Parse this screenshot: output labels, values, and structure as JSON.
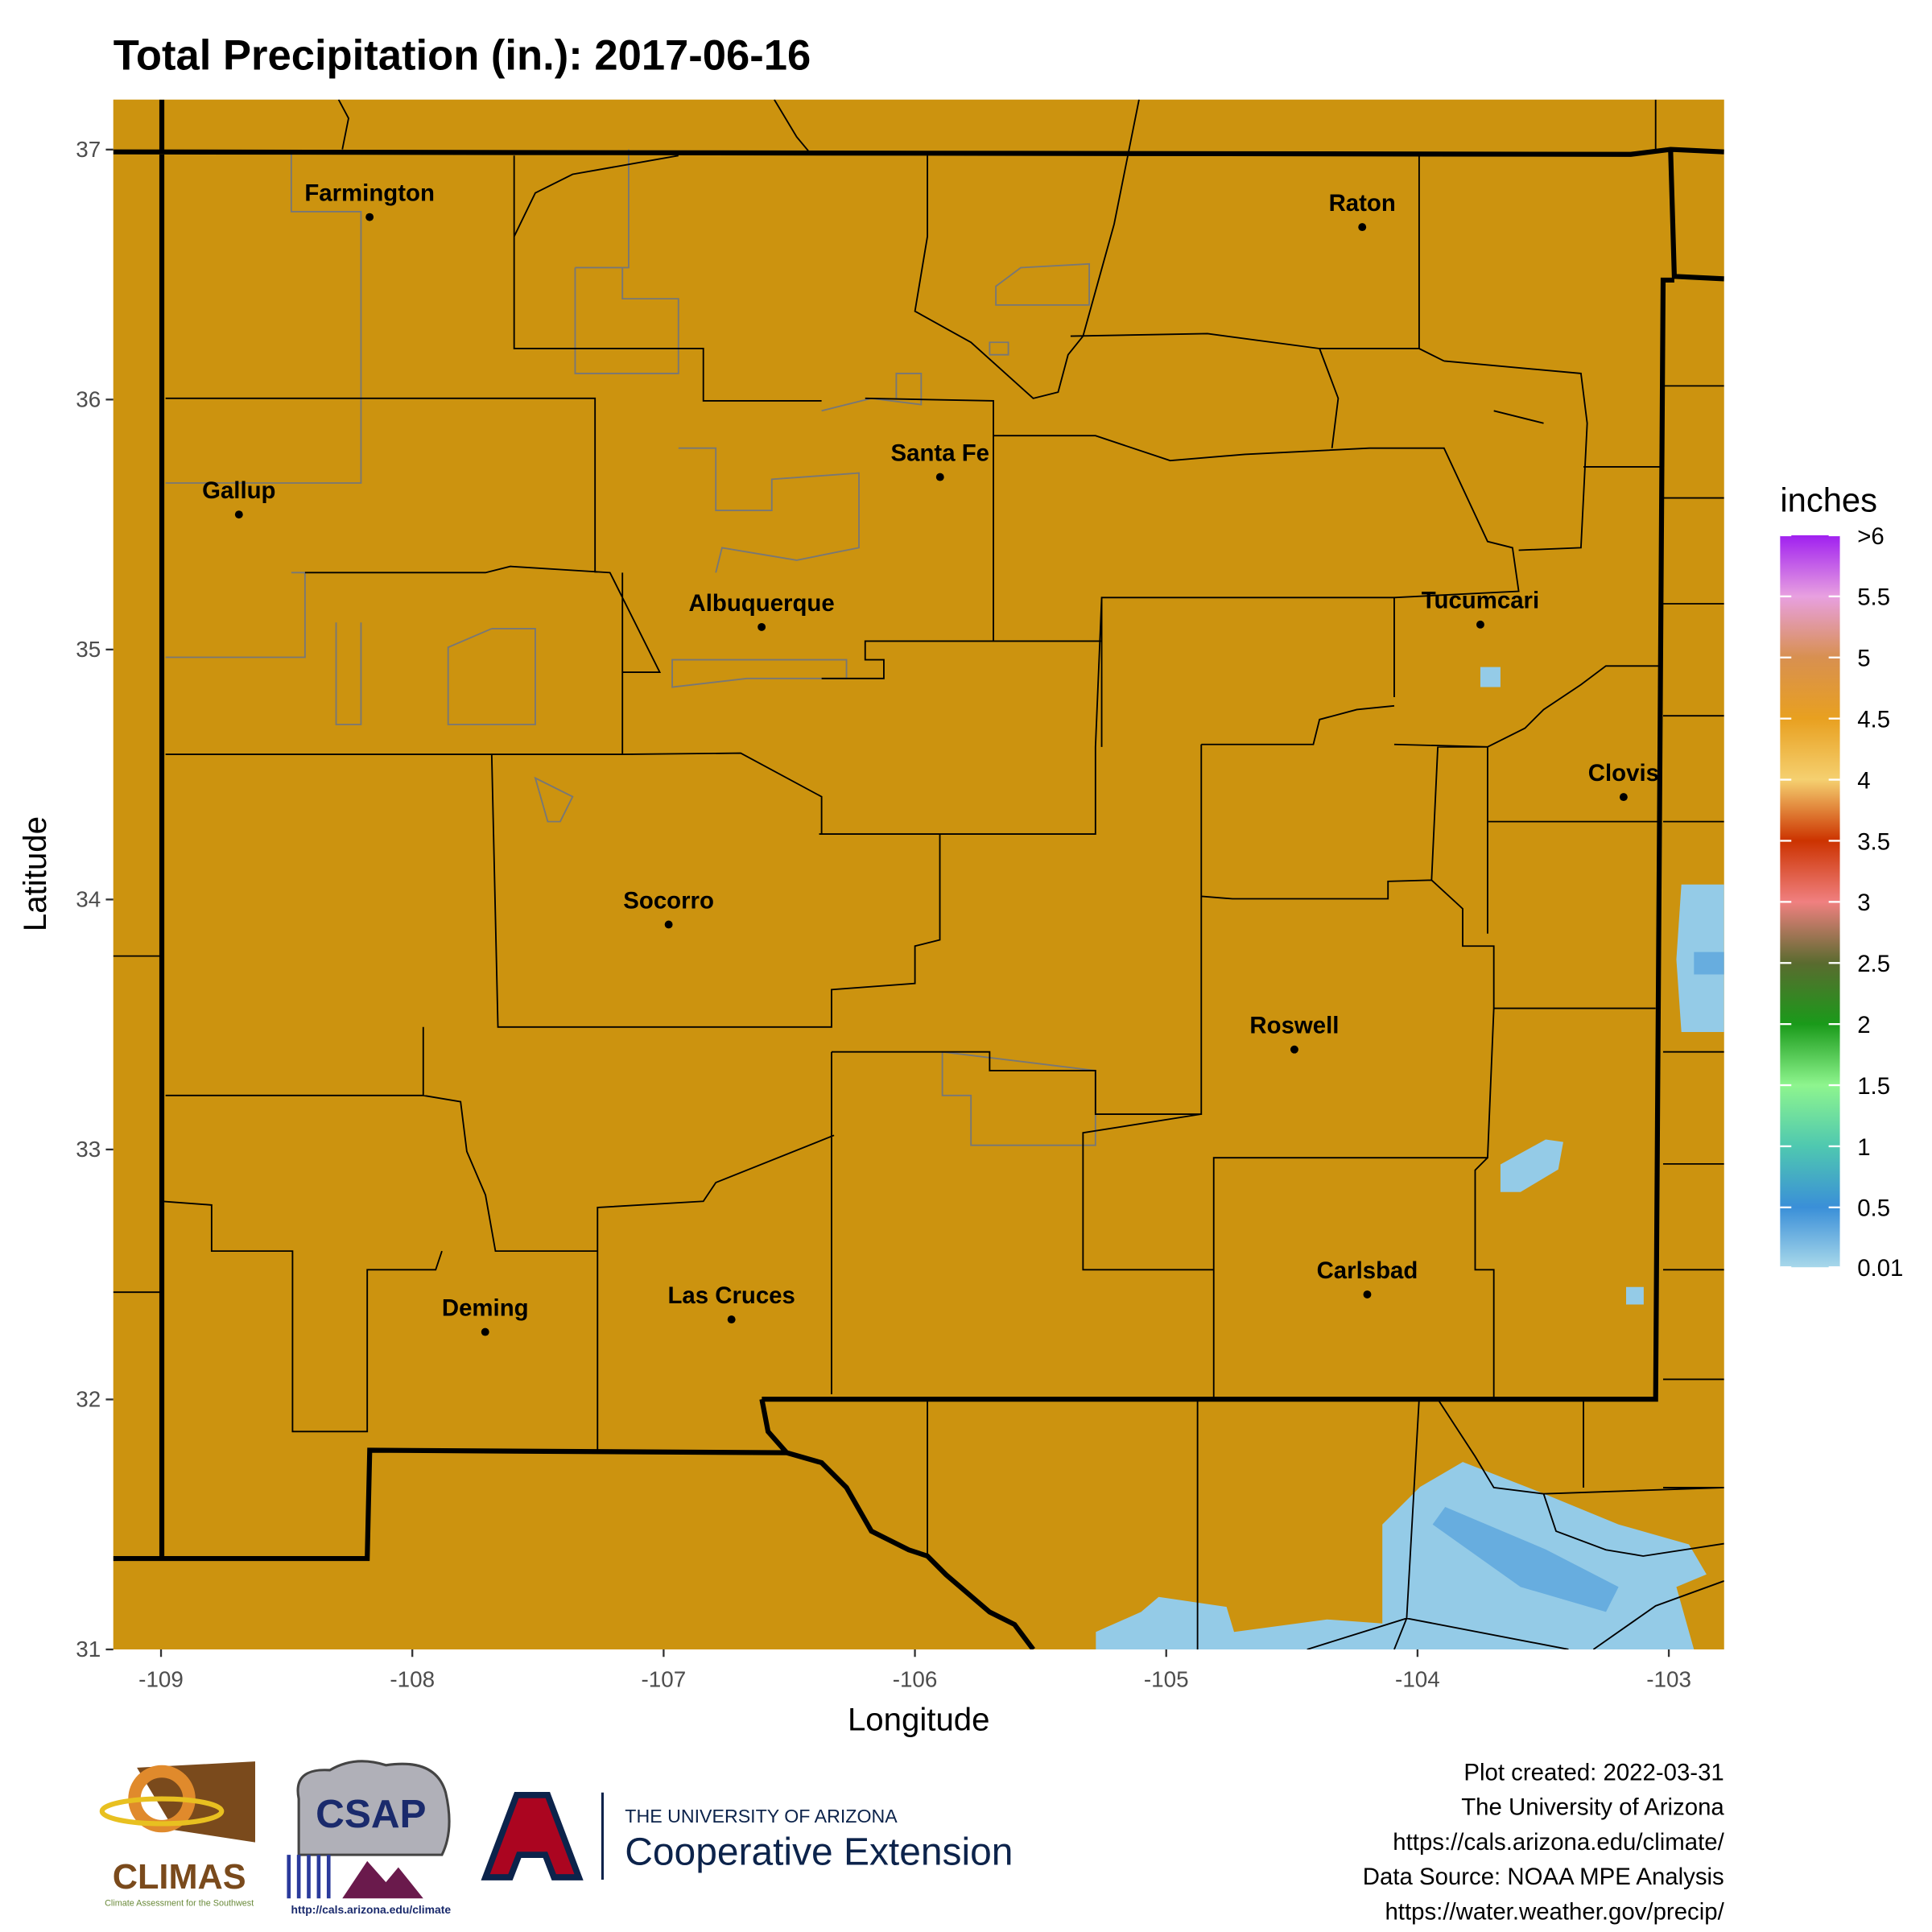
{
  "map": {
    "title": "Total Precipitation (in.): 2017-06-16",
    "x_label": "Longitude",
    "y_label": "Latitude",
    "xlim": [
      -109.19,
      -102.78
    ],
    "ylim": [
      31,
      37.2
    ],
    "xticks": [
      -109,
      -108,
      -107,
      -106,
      -105,
      -104,
      -103
    ],
    "yticks": [
      31,
      32,
      33,
      34,
      35,
      36,
      37
    ],
    "background_color": "#cc930f",
    "cities": [
      {
        "name": "Farmington",
        "lon": -108.17,
        "lat": 36.73
      },
      {
        "name": "Gallup",
        "lon": -108.69,
        "lat": 35.54
      },
      {
        "name": "Santa Fe",
        "lon": -105.9,
        "lat": 35.69
      },
      {
        "name": "Albuquerque",
        "lon": -106.61,
        "lat": 35.09
      },
      {
        "name": "Raton",
        "lon": -104.22,
        "lat": 36.69
      },
      {
        "name": "Tucumcari",
        "lon": -103.75,
        "lat": 35.1
      },
      {
        "name": "Clovis",
        "lon": -103.18,
        "lat": 34.41
      },
      {
        "name": "Socorro",
        "lon": -106.98,
        "lat": 33.9
      },
      {
        "name": "Roswell",
        "lon": -104.49,
        "lat": 33.4
      },
      {
        "name": "Carlsbad",
        "lon": -104.2,
        "lat": 32.42
      },
      {
        "name": "Deming",
        "lon": -107.71,
        "lat": 32.27
      },
      {
        "name": "Las Cruces",
        "lon": -106.73,
        "lat": 32.32
      }
    ],
    "precip_areas": [
      {
        "value": 0.1,
        "lon": [
          -104.14,
          -104.14,
          -103.99,
          -103.82,
          -103.49,
          -103.2,
          -102.92,
          -102.85,
          -102.97,
          -102.9
        ],
        "lat": [
          31,
          31.5,
          31.65,
          31.75,
          31.62,
          31.5,
          31.42,
          31.3,
          31.25,
          31
        ]
      },
      {
        "value": 0.3,
        "lon": [
          -103.89,
          -103.49,
          -103.2,
          -103.25,
          -103.59,
          -103.94
        ],
        "lat": [
          31.57,
          31.4,
          31.25,
          31.15,
          31.25,
          31.5
        ]
      },
      {
        "value": 0.1,
        "lon": [
          -105.28,
          -105.28,
          -105.1,
          -105.03,
          -104.76,
          -104.73,
          -104.36,
          -104.09,
          -104.06
        ],
        "lat": [
          31,
          31.07,
          31.15,
          31.21,
          31.17,
          31.07,
          31.12,
          31.1,
          31
        ]
      },
      {
        "value": 0.1,
        "lon": [
          -102.95,
          -102.78,
          -102.78,
          -102.95,
          -102.97
        ],
        "lat": [
          34.06,
          34.06,
          33.47,
          33.47,
          33.76
        ]
      },
      {
        "value": 0.3,
        "lon": [
          -102.9,
          -102.78,
          -102.78,
          -102.9
        ],
        "lat": [
          33.79,
          33.79,
          33.7,
          33.7
        ]
      },
      {
        "value": 0.1,
        "lon": [
          -103.67,
          -103.67,
          -103.49,
          -103.42,
          -103.44,
          -103.59
        ],
        "lat": [
          32.83,
          32.94,
          33.04,
          33.03,
          32.92,
          32.83
        ]
      },
      {
        "value": 0.1,
        "lon": [
          -103.75,
          -103.67,
          -103.67,
          -103.75
        ],
        "lat": [
          34.93,
          34.93,
          34.85,
          34.85
        ]
      },
      {
        "value": 0.1,
        "lon": [
          -103.17,
          -103.1,
          -103.1,
          -103.17
        ],
        "lat": [
          32.45,
          32.45,
          32.38,
          32.38
        ]
      }
    ],
    "legend": {
      "title": "inches",
      "lim": [
        0.01,
        6
      ],
      "ticks": [
        0.01,
        0.5,
        1,
        1.5,
        2,
        2.5,
        3,
        3.5,
        4,
        4.5,
        5,
        5.5,
        {
          "value": 6,
          "label": ">6"
        }
      ],
      "colors": [
        "#a8d8ea",
        "#3a8fd8",
        "#4fc8b0",
        "#8ef58e",
        "#1a9a1a",
        "#5a6b2f",
        "#f08080",
        "#cc3300",
        "#f5d070",
        "#e8a020",
        "#d89050",
        "#e8a0e0",
        "#a020f0"
      ]
    },
    "footer": [
      "Plot created: 2022-03-31",
      "The University of Arizona",
      "https://cals.arizona.edu/climate/",
      "Data Source: NOAA MPE Analysis",
      "https://water.weather.gov/precip/"
    ],
    "logos": {
      "climas": "CLIMAS",
      "climas_sub": "Climate Assessment for the Southwest",
      "csap": "CSAP",
      "csap_url": "http://cals.arizona.edu/climate",
      "ua": "THE UNIVERSITY OF ARIZONA",
      "ua_unit": "Cooperative Extension"
    }
  }
}
